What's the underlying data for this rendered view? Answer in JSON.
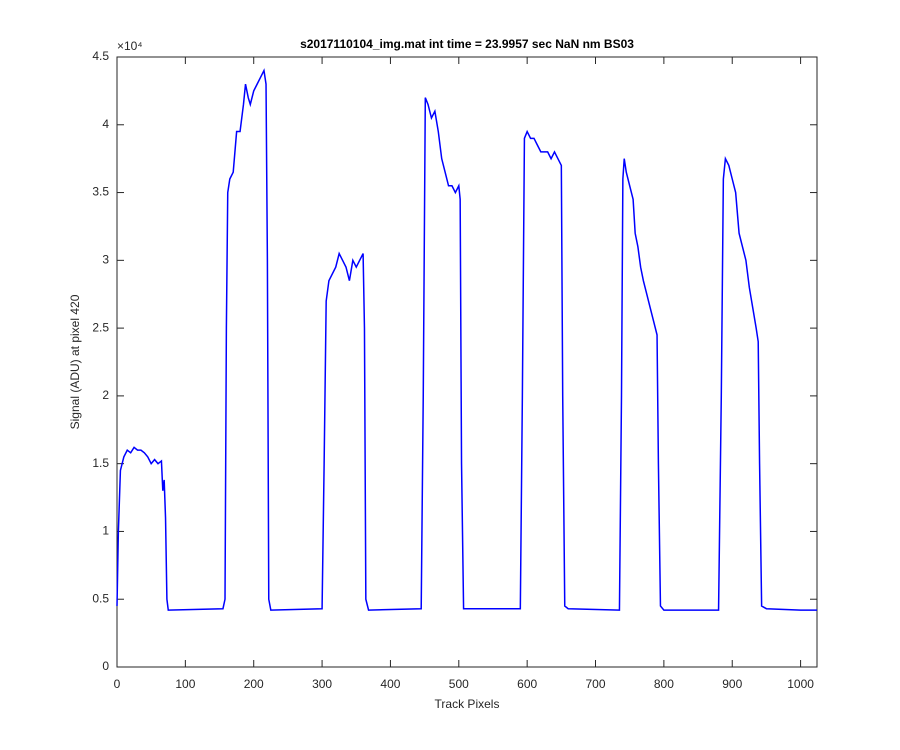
{
  "chart_data": {
    "type": "line",
    "title": "s2017110104_img.mat int time = 23.9957 sec  NaN nm BS03",
    "x_label": "Track Pixels",
    "y_label": "Signal (ADU) at pixel 420",
    "y_exponent_label": "×10⁴",
    "xlim": [
      0,
      1024
    ],
    "xticks": [
      0,
      100,
      200,
      300,
      400,
      500,
      600,
      700,
      800,
      900,
      1000
    ],
    "ylim": [
      0,
      4.5
    ],
    "yticks": [
      0,
      0.5,
      1,
      1.5,
      2,
      2.5,
      3,
      3.5,
      4,
      4.5
    ],
    "grid": false,
    "series": [
      {
        "color": "#0000ff",
        "x": [
          0,
          2,
          5,
          10,
          15,
          20,
          25,
          30,
          35,
          40,
          45,
          50,
          55,
          60,
          65,
          67,
          69,
          71,
          73,
          75,
          155,
          158,
          160,
          162,
          165,
          170,
          175,
          180,
          185,
          188,
          192,
          195,
          200,
          205,
          210,
          215,
          218,
          220,
          222,
          225,
          300,
          303,
          306,
          310,
          320,
          325,
          330,
          335,
          340,
          345,
          350,
          355,
          360,
          362,
          364,
          368,
          445,
          448,
          451,
          455,
          460,
          465,
          470,
          475,
          480,
          485,
          490,
          495,
          500,
          502,
          504,
          507,
          590,
          593,
          596,
          600,
          605,
          610,
          615,
          620,
          625,
          630,
          635,
          640,
          645,
          650,
          652,
          655,
          660,
          735,
          738,
          740,
          742,
          745,
          750,
          755,
          758,
          762,
          766,
          770,
          775,
          780,
          785,
          790,
          792,
          795,
          800,
          880,
          884,
          887,
          890,
          895,
          900,
          905,
          910,
          915,
          920,
          925,
          930,
          935,
          938,
          940,
          943,
          950,
          1000,
          1024
        ],
        "values": [
          0.45,
          1.0,
          1.45,
          1.55,
          1.6,
          1.58,
          1.62,
          1.6,
          1.6,
          1.58,
          1.55,
          1.5,
          1.53,
          1.5,
          1.52,
          1.3,
          1.38,
          1.1,
          0.5,
          0.42,
          0.43,
          0.5,
          2.5,
          3.5,
          3.6,
          3.65,
          3.95,
          3.95,
          4.15,
          4.3,
          4.2,
          4.15,
          4.25,
          4.3,
          4.35,
          4.4,
          4.3,
          3.0,
          0.5,
          0.42,
          0.43,
          1.5,
          2.7,
          2.85,
          2.95,
          3.05,
          3.0,
          2.95,
          2.85,
          3.0,
          2.95,
          3.0,
          3.05,
          2.5,
          0.5,
          0.42,
          0.43,
          2.0,
          4.2,
          4.15,
          4.05,
          4.1,
          3.95,
          3.75,
          3.65,
          3.55,
          3.55,
          3.5,
          3.55,
          3.45,
          1.5,
          0.43,
          0.43,
          2.0,
          3.9,
          3.95,
          3.9,
          3.9,
          3.85,
          3.8,
          3.8,
          3.8,
          3.75,
          3.8,
          3.75,
          3.7,
          2.0,
          0.45,
          0.43,
          0.42,
          2.0,
          3.6,
          3.75,
          3.65,
          3.55,
          3.45,
          3.2,
          3.1,
          2.95,
          2.85,
          2.75,
          2.65,
          2.55,
          2.45,
          1.5,
          0.45,
          0.42,
          0.42,
          2.0,
          3.6,
          3.75,
          3.7,
          3.6,
          3.5,
          3.2,
          3.1,
          3.0,
          2.8,
          2.65,
          2.5,
          2.4,
          1.5,
          0.45,
          0.43,
          0.42,
          0.42
        ]
      }
    ]
  }
}
